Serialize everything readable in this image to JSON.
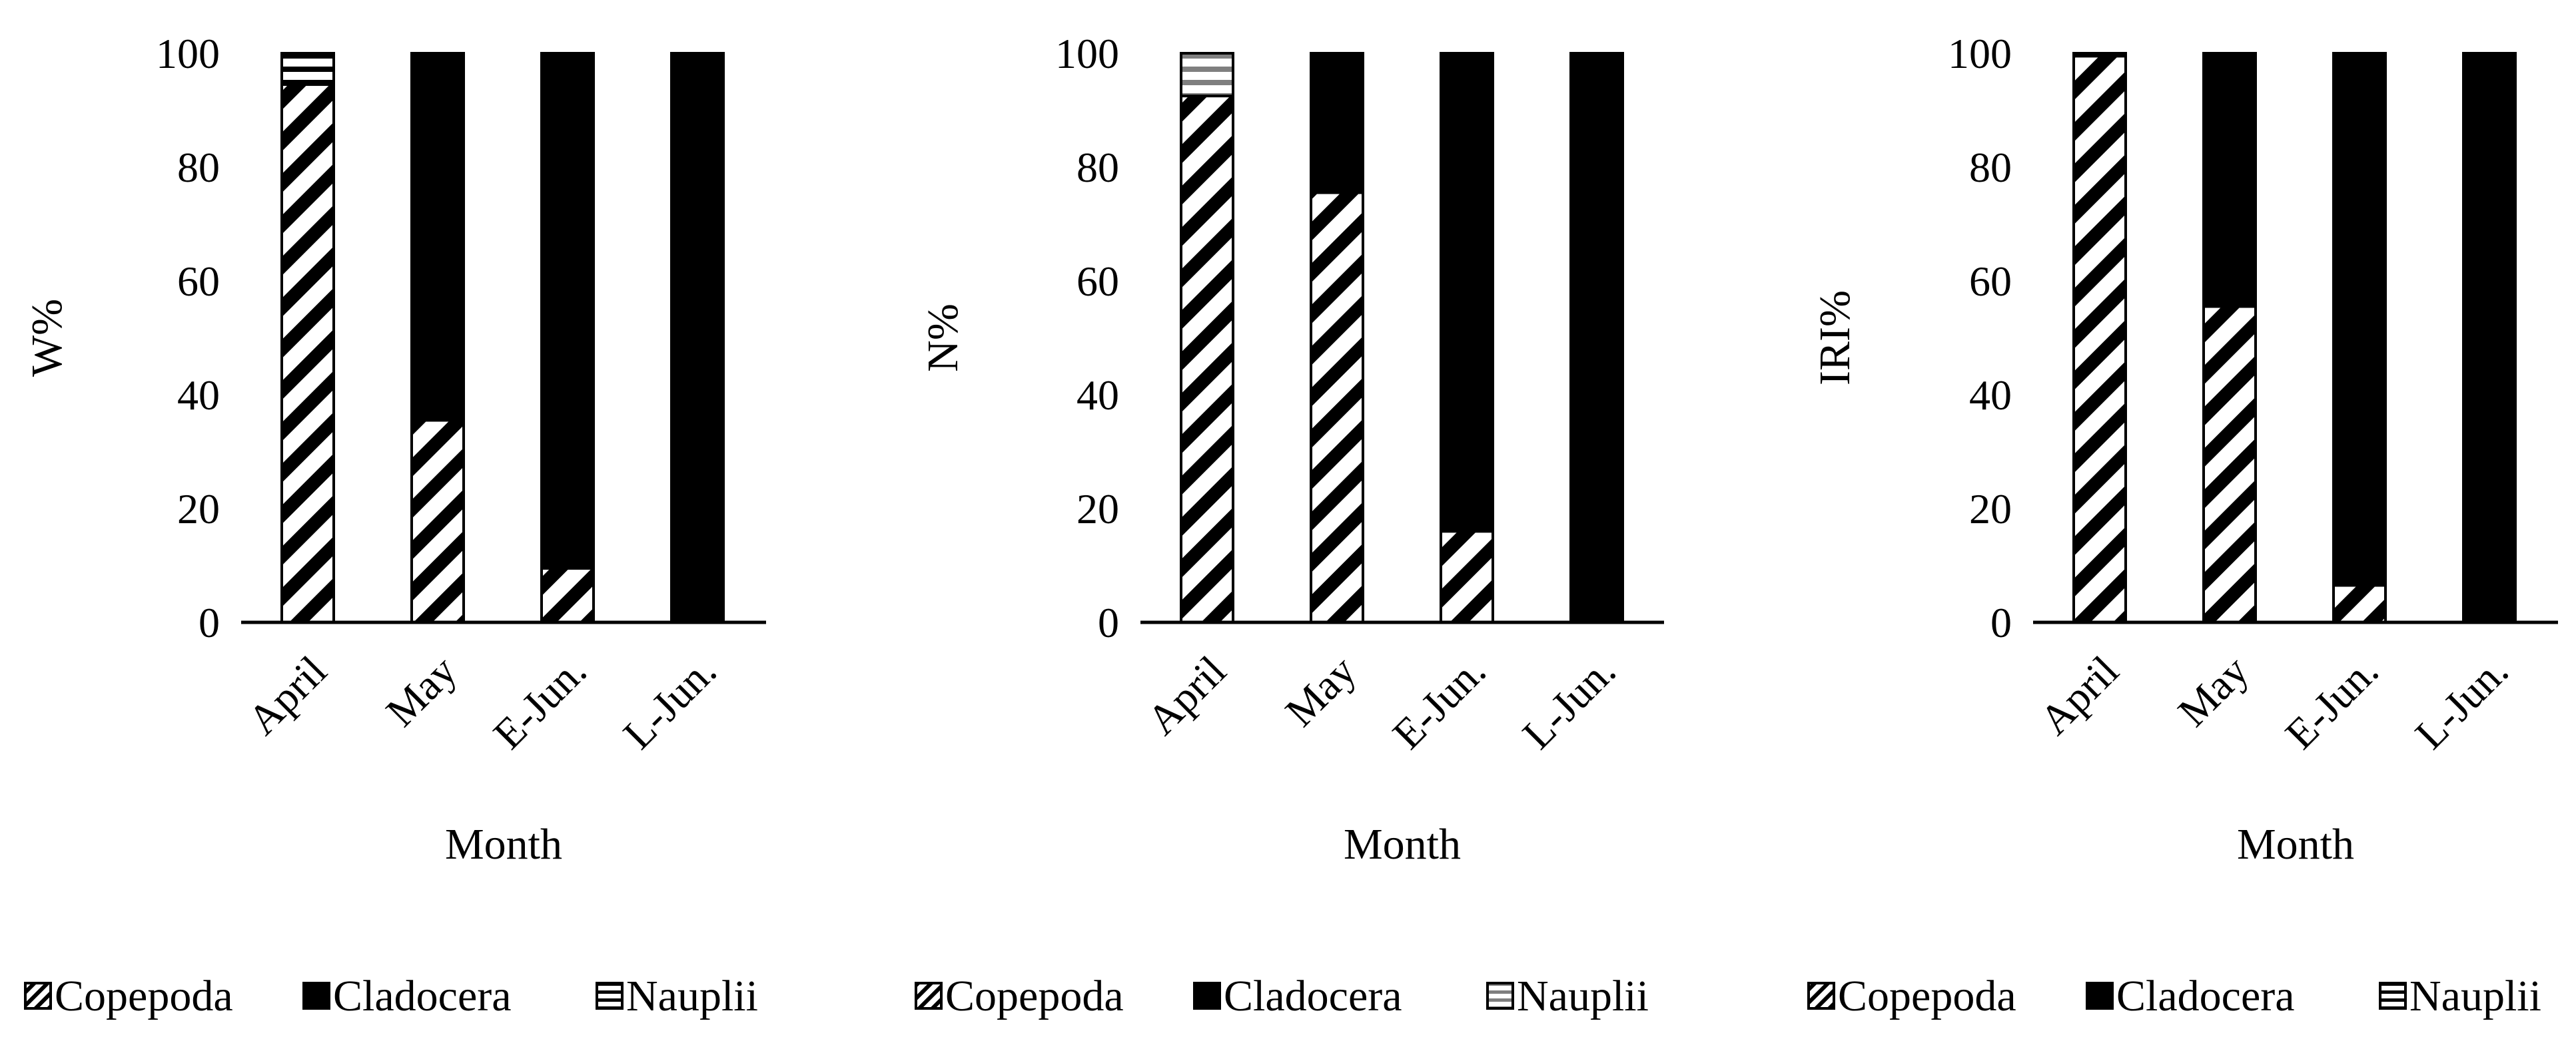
{
  "colors": {
    "cladocera": "#000000",
    "copepoda_stripe": "#000000",
    "background": "#ffffff",
    "nauplii_gray": "#7f7f7f"
  },
  "chart_data": [
    {
      "type": "bar",
      "stacked": true,
      "ylabel": "W%",
      "xlabel": "Month",
      "ylim": [
        0,
        100
      ],
      "yticks": [
        0,
        20,
        40,
        60,
        80,
        100
      ],
      "categories": [
        "April",
        "May",
        "E-Jun.",
        "L-Jun."
      ],
      "series": [
        {
          "name": "Copepoda",
          "values": [
            94.5,
            35.5,
            9.5,
            0
          ]
        },
        {
          "name": "Cladocera",
          "values": [
            0,
            64.5,
            90.5,
            100
          ]
        },
        {
          "name": "Nauplii",
          "values": [
            5.5,
            0,
            0,
            0
          ]
        }
      ],
      "legend": [
        "Copepoda",
        "Cladocera",
        "Nauplii"
      ],
      "legend_position": "bottom"
    },
    {
      "type": "bar",
      "stacked": true,
      "ylabel": "N%",
      "xlabel": "Month",
      "ylim": [
        0,
        100
      ],
      "yticks": [
        0,
        20,
        40,
        60,
        80,
        100
      ],
      "categories": [
        "April",
        "May",
        "E-Jun.",
        "L-Jun."
      ],
      "series": [
        {
          "name": "Copepoda",
          "values": [
            92.5,
            75.5,
            16,
            0
          ]
        },
        {
          "name": "Cladocera",
          "values": [
            0,
            24.5,
            84,
            100
          ]
        },
        {
          "name": "Nauplii",
          "values": [
            7.5,
            0,
            0,
            0
          ]
        }
      ],
      "legend": [
        "Copepoda",
        "Cladocera",
        "Nauplii"
      ],
      "legend_position": "bottom"
    },
    {
      "type": "bar",
      "stacked": true,
      "ylabel": "IRI%",
      "xlabel": "Month",
      "ylim": [
        0,
        100
      ],
      "yticks": [
        0,
        20,
        40,
        60,
        80,
        100
      ],
      "categories": [
        "April",
        "May",
        "E-Jun.",
        "L-Jun."
      ],
      "series": [
        {
          "name": "Copepoda",
          "values": [
            99.5,
            55.5,
            6.5,
            0
          ]
        },
        {
          "name": "Cladocera",
          "values": [
            0,
            44.5,
            93.5,
            100
          ]
        },
        {
          "name": "Nauplii",
          "values": [
            0.5,
            0,
            0,
            0
          ]
        }
      ],
      "legend": [
        "Copepoda",
        "Cladocera",
        "Nauplii"
      ],
      "legend_position": "bottom"
    }
  ]
}
